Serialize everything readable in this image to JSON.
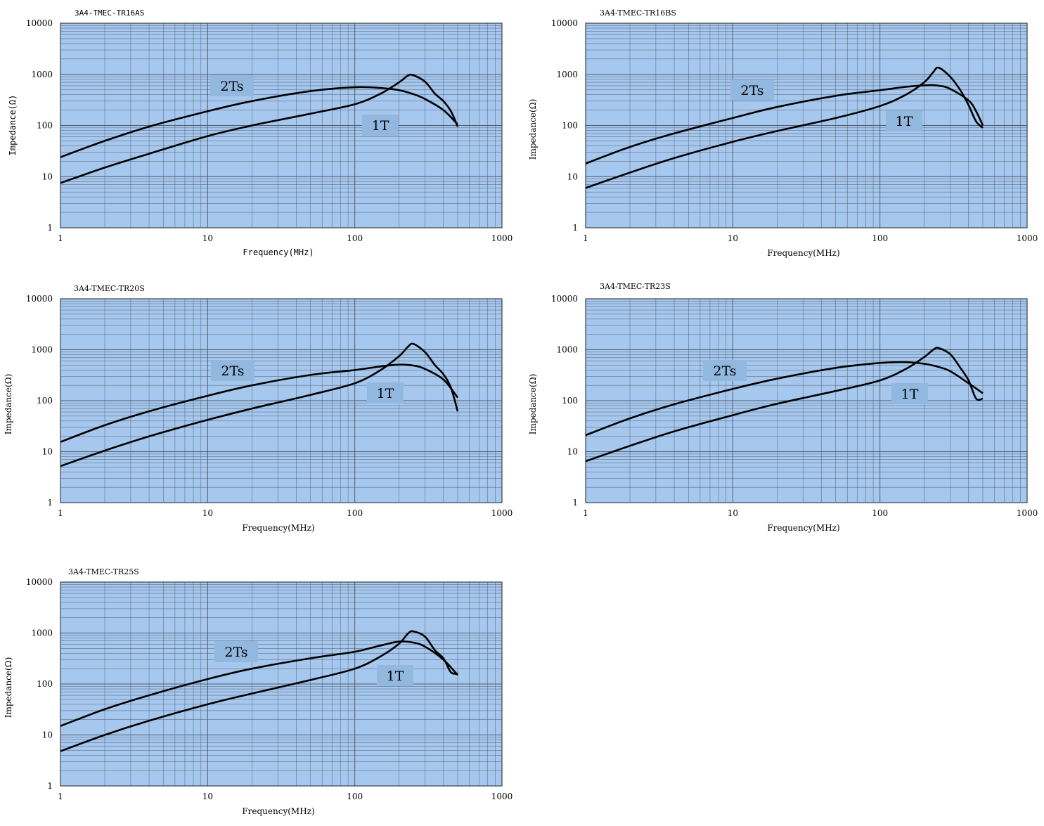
{
  "colors": {
    "plot_background": "#a6c8ee",
    "grid_line": "#46505e",
    "curve": "#000000",
    "label_box": "#92b8e0"
  },
  "chart_data": [
    {
      "type": "line",
      "title": "3A4-TMEC-TR16AS",
      "xlabel": "Frequency(MHz)",
      "ylabel": "Impedance(Ω)",
      "x_scale": "log",
      "y_scale": "log",
      "xlim": [
        1,
        1000
      ],
      "ylim": [
        1,
        10000
      ],
      "x_ticks": [
        "1",
        "10",
        "100",
        "1000"
      ],
      "y_ticks": [
        "1",
        "10",
        "100",
        "1000",
        "10000"
      ],
      "grid": true,
      "series": [
        {
          "name": "2Ts",
          "x": [
            1,
            2,
            4,
            10,
            20,
            50,
            100,
            150,
            200,
            250,
            300,
            400,
            500
          ],
          "y": [
            24,
            50,
            95,
            190,
            300,
            470,
            560,
            540,
            490,
            410,
            330,
            200,
            105
          ]
        },
        {
          "name": "1T",
          "x": [
            1,
            2,
            4,
            10,
            20,
            50,
            100,
            150,
            200,
            230,
            250,
            300,
            350,
            400,
            450,
            500
          ],
          "y": [
            7.5,
            15,
            28,
            62,
            100,
            170,
            260,
            420,
            700,
            950,
            960,
            720,
            420,
            300,
            190,
            95
          ]
        }
      ]
    },
    {
      "type": "line",
      "title": "3A4-TMEC-TR16BS",
      "xlabel": "Frequency(MHz)",
      "ylabel": "Impedance(Ω)",
      "x_scale": "log",
      "y_scale": "log",
      "xlim": [
        1,
        1000
      ],
      "ylim": [
        1,
        10000
      ],
      "x_ticks": [
        "1",
        "10",
        "100",
        "1000"
      ],
      "y_ticks": [
        "1",
        "10",
        "100",
        "1000",
        "10000"
      ],
      "grid": true,
      "series": [
        {
          "name": "2Ts",
          "x": [
            1,
            2,
            4,
            10,
            20,
            50,
            100,
            150,
            200,
            250,
            300,
            400,
            450,
            500
          ],
          "y": [
            18,
            38,
            70,
            140,
            230,
            380,
            490,
            570,
            610,
            600,
            520,
            310,
            190,
            100
          ]
        },
        {
          "name": "1T",
          "x": [
            1,
            2,
            4,
            10,
            20,
            50,
            100,
            150,
            200,
            230,
            250,
            300,
            350,
            400,
            450,
            500
          ],
          "y": [
            6,
            12,
            23,
            48,
            78,
            140,
            240,
            400,
            700,
            1100,
            1350,
            900,
            500,
            250,
            120,
            90
          ]
        }
      ]
    },
    {
      "type": "line",
      "title": "3A4-TMEC-TR20S",
      "xlabel": "Frequency(MHz)",
      "ylabel": "Impedance(Ω)",
      "x_scale": "log",
      "y_scale": "log",
      "xlim": [
        1,
        1000
      ],
      "ylim": [
        1,
        10000
      ],
      "x_ticks": [
        "1",
        "10",
        "100",
        "1000"
      ],
      "y_ticks": [
        "1",
        "10",
        "100",
        "1000",
        "10000"
      ],
      "grid": true,
      "series": [
        {
          "name": "2Ts",
          "x": [
            1,
            2,
            4,
            10,
            20,
            50,
            100,
            150,
            200,
            250,
            300,
            400,
            500
          ],
          "y": [
            15.5,
            33,
            62,
            125,
            200,
            320,
            400,
            470,
            510,
            490,
            420,
            260,
            115
          ]
        },
        {
          "name": "1T",
          "x": [
            1,
            2,
            4,
            10,
            20,
            50,
            100,
            150,
            200,
            230,
            250,
            300,
            350,
            400,
            450,
            500
          ],
          "y": [
            5.2,
            10.5,
            20,
            42,
            70,
            130,
            220,
            400,
            750,
            1150,
            1300,
            900,
            500,
            330,
            180,
            62
          ]
        }
      ]
    },
    {
      "type": "line",
      "title": "3A4-TMEC-TR23S",
      "xlabel": "Frequency(MHz)",
      "ylabel": "Impedance(Ω)",
      "x_scale": "log",
      "y_scale": "log",
      "xlim": [
        1,
        1000
      ],
      "ylim": [
        1,
        10000
      ],
      "x_ticks": [
        "1",
        "10",
        "100",
        "1000"
      ],
      "y_ticks": [
        "1",
        "10",
        "100",
        "1000",
        "10000"
      ],
      "grid": true,
      "series": [
        {
          "name": "2Ts",
          "x": [
            1,
            2,
            4,
            10,
            20,
            50,
            100,
            150,
            200,
            250,
            300,
            400,
            500
          ],
          "y": [
            21,
            45,
            85,
            170,
            270,
            440,
            550,
            570,
            530,
            460,
            380,
            220,
            140
          ]
        },
        {
          "name": "1T",
          "x": [
            1,
            2,
            4,
            10,
            20,
            50,
            100,
            150,
            200,
            230,
            250,
            300,
            350,
            400,
            450,
            500
          ],
          "y": [
            6.5,
            13,
            25,
            52,
            87,
            155,
            250,
            420,
            720,
            1000,
            1080,
            820,
            450,
            250,
            110,
            110
          ]
        }
      ]
    },
    {
      "type": "line",
      "title": "3A4-TMEC-TR25S",
      "xlabel": "Frequency(MHz)",
      "ylabel": "Impedance(Ω)",
      "x_scale": "log",
      "y_scale": "log",
      "xlim": [
        1,
        1000
      ],
      "ylim": [
        1,
        10000
      ],
      "x_ticks": [
        "1",
        "10",
        "100",
        "1000"
      ],
      "y_ticks": [
        "1",
        "10",
        "100",
        "1000",
        "10000"
      ],
      "grid": true,
      "series": [
        {
          "name": "2Ts",
          "x": [
            1,
            2,
            4,
            10,
            20,
            50,
            100,
            150,
            200,
            250,
            300,
            400,
            500
          ],
          "y": [
            15,
            32,
            60,
            125,
            200,
            320,
            430,
            570,
            680,
            650,
            540,
            300,
            150
          ]
        },
        {
          "name": "1T",
          "x": [
            1,
            2,
            4,
            10,
            20,
            50,
            100,
            150,
            200,
            230,
            250,
            300,
            350,
            400,
            450,
            500
          ],
          "y": [
            4.8,
            10,
            19,
            40,
            65,
            120,
            200,
            350,
            620,
            980,
            1080,
            850,
            460,
            320,
            170,
            160
          ]
        }
      ]
    }
  ]
}
